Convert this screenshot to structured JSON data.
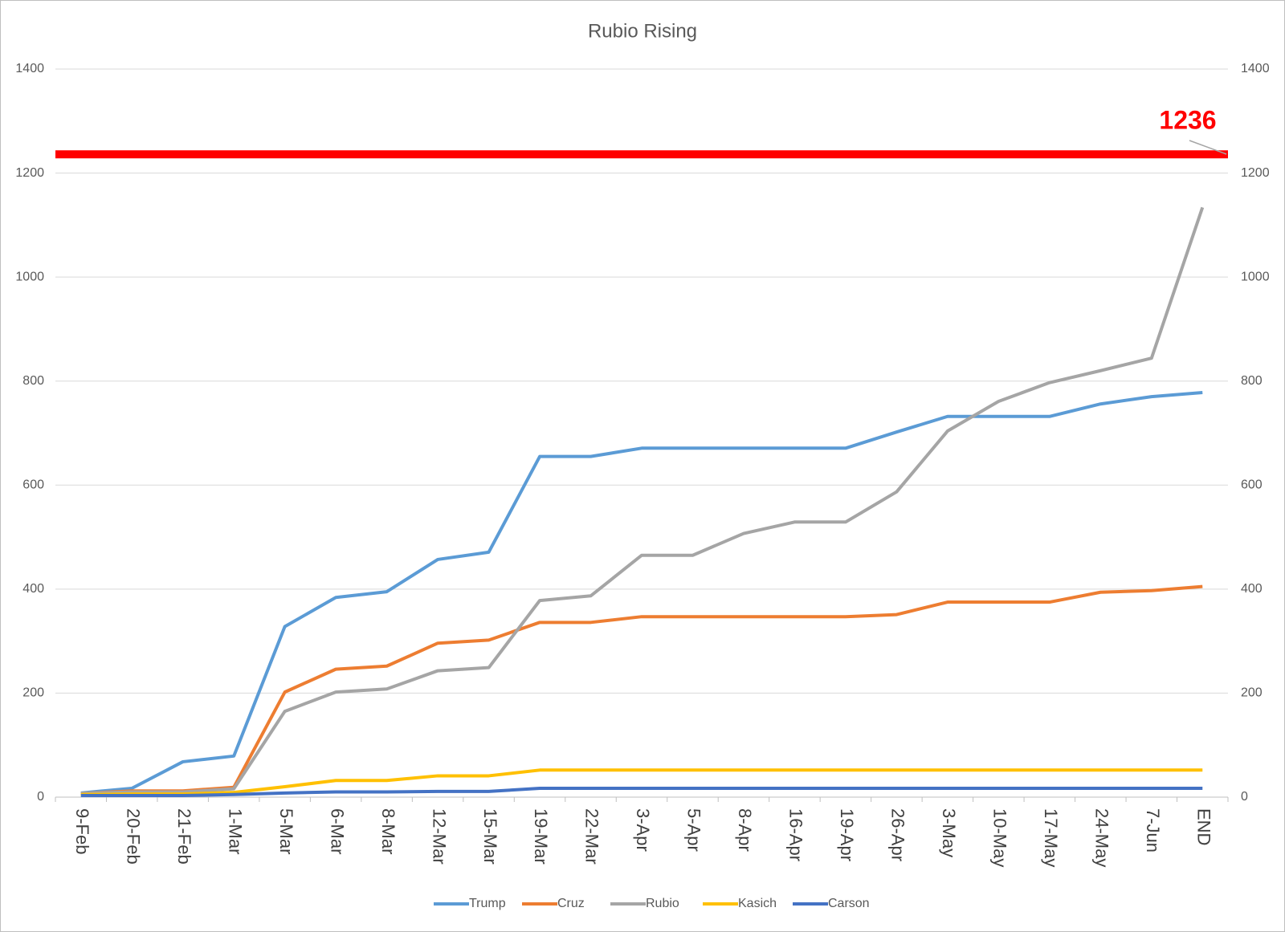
{
  "chart_data": {
    "type": "line",
    "title": "Rubio Rising",
    "categories": [
      "9-Feb",
      "20-Feb",
      "21-Feb",
      "1-Mar",
      "5-Mar",
      "6-Mar",
      "8-Mar",
      "12-Mar",
      "15-Mar",
      "19-Mar",
      "22-Mar",
      "3-Apr",
      "5-Apr",
      "8-Apr",
      "16-Apr",
      "19-Apr",
      "26-Apr",
      "3-May",
      "10-May",
      "17-May",
      "24-May",
      "7-Jun",
      "END"
    ],
    "series": [
      {
        "name": "Trump",
        "color": "#5b9bd5",
        "values": [
          8,
          17,
          68,
          79,
          328,
          384,
          395,
          457,
          471,
          655,
          655,
          671,
          671,
          671,
          671,
          671,
          702,
          732,
          732,
          732,
          756,
          770,
          778
        ]
      },
      {
        "name": "Cruz",
        "color": "#ed7d31",
        "values": [
          7,
          12,
          12,
          19,
          202,
          246,
          252,
          296,
          302,
          336,
          336,
          347,
          347,
          347,
          347,
          347,
          351,
          375,
          375,
          375,
          394,
          397,
          405
        ]
      },
      {
        "name": "Rubio",
        "color": "#a5a5a5",
        "values": [
          7,
          10,
          10,
          16,
          165,
          202,
          208,
          243,
          249,
          378,
          387,
          465,
          465,
          507,
          529,
          529,
          587,
          704,
          761,
          797,
          820,
          844,
          1134
        ]
      },
      {
        "name": "Kasich",
        "color": "#ffc000",
        "values": [
          5,
          6,
          6,
          9,
          20,
          32,
          32,
          41,
          41,
          52,
          52,
          52,
          52,
          52,
          52,
          52,
          52,
          52,
          52,
          52,
          52,
          52,
          52
        ]
      },
      {
        "name": "Carson",
        "color": "#4472c4",
        "values": [
          3,
          3,
          3,
          5,
          8,
          10,
          10,
          11,
          11,
          17,
          17,
          17,
          17,
          17,
          17,
          17,
          17,
          17,
          17,
          17,
          17,
          17,
          17
        ]
      }
    ],
    "reference_line": {
      "value": 1236,
      "color": "#ff0000"
    },
    "ylim": [
      0,
      1400
    ],
    "yticks": [
      0,
      200,
      400,
      600,
      800,
      1000,
      1200,
      1400
    ],
    "y2lim": [
      0,
      1400
    ],
    "y2ticks": [
      0,
      200,
      400,
      600,
      800,
      1000,
      1200,
      1400
    ],
    "grid": true,
    "legend": "bottom"
  }
}
